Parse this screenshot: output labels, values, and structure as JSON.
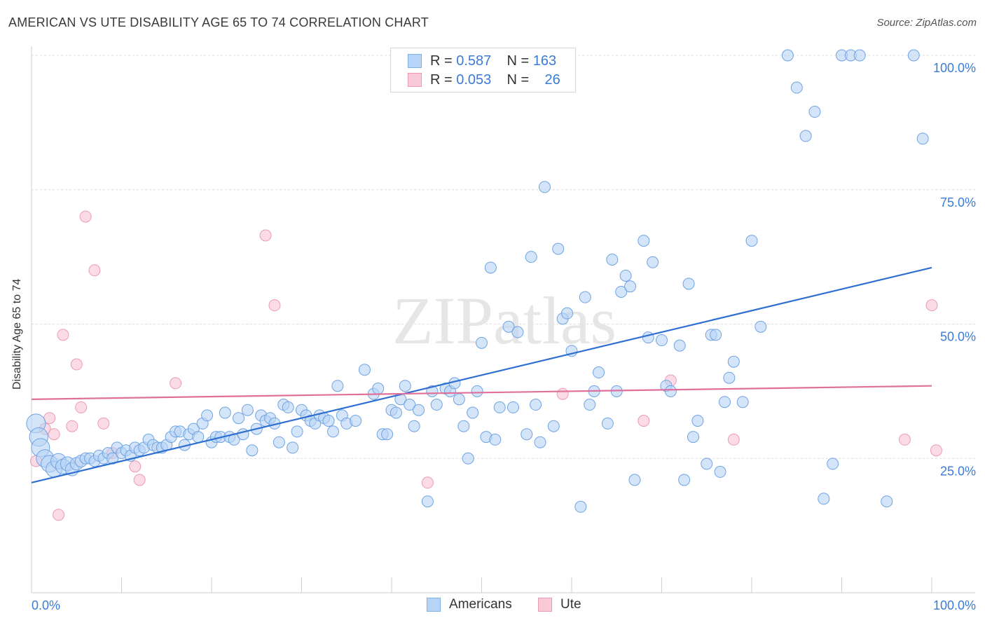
{
  "title": "AMERICAN VS UTE DISABILITY AGE 65 TO 74 CORRELATION CHART",
  "source": "Source: ZipAtlas.com",
  "legend": {
    "rows": [
      {
        "r_label": "R =",
        "r_value": "0.587",
        "n_label": "N =",
        "n_value": "163"
      },
      {
        "r_label": "R =",
        "r_value": "0.053",
        "n_label": "N =",
        "n_value": "26"
      }
    ]
  },
  "bottom_legend": [
    "Americans",
    "Ute"
  ],
  "colors": {
    "blue_fill": "#b7d3f5",
    "blue_stroke": "#6fa3e3",
    "blue_line": "#2f6fd0",
    "pink_fill": "#f9c9d8",
    "pink_stroke": "#ec9ab5",
    "pink_line": "#e0709a",
    "axis_text": "#3b7bd6",
    "grid": "#dcdcdc"
  },
  "chart_data": {
    "type": "scatter",
    "title": "AMERICAN VS UTE DISABILITY AGE 65 TO 74 CORRELATION CHART",
    "xlabel": "",
    "ylabel": "Disability Age 65 to 74",
    "xlim": [
      0,
      100
    ],
    "ylim": [
      0,
      100
    ],
    "x_tick_labels": [
      "0.0%",
      "100.0%"
    ],
    "y_tick_labels": [
      "25.0%",
      "50.0%",
      "75.0%",
      "100.0%"
    ],
    "y_ticks": [
      25,
      50,
      75,
      100
    ],
    "grid": true,
    "watermark": "ZIPatlas",
    "series": [
      {
        "name": "Americans",
        "r": 0.587,
        "n": 163,
        "trend": [
          [
            0,
            20.5
          ],
          [
            100,
            60.5
          ]
        ],
        "points": [
          [
            0.5,
            31.5
          ],
          [
            0.8,
            29
          ],
          [
            1,
            27
          ],
          [
            1.5,
            25
          ],
          [
            2,
            24
          ],
          [
            2.5,
            23
          ],
          [
            3,
            24.5
          ],
          [
            3.5,
            23.5
          ],
          [
            4,
            24
          ],
          [
            4.5,
            23
          ],
          [
            5,
            24
          ],
          [
            5.5,
            24.5
          ],
          [
            6,
            25
          ],
          [
            6.5,
            25
          ],
          [
            7,
            24.5
          ],
          [
            7.5,
            25.5
          ],
          [
            8,
            25
          ],
          [
            8.5,
            26
          ],
          [
            9,
            25
          ],
          [
            9.5,
            27
          ],
          [
            10,
            26
          ],
          [
            10.5,
            26.5
          ],
          [
            11,
            25.5
          ],
          [
            11.5,
            27
          ],
          [
            12,
            26.5
          ],
          [
            12.5,
            27
          ],
          [
            13,
            28.5
          ],
          [
            13.5,
            27.5
          ],
          [
            14,
            27
          ],
          [
            14.5,
            27
          ],
          [
            15,
            27.5
          ],
          [
            15.5,
            29
          ],
          [
            16,
            30
          ],
          [
            16.5,
            30
          ],
          [
            17,
            27.5
          ],
          [
            17.5,
            29.5
          ],
          [
            18,
            30.5
          ],
          [
            18.5,
            29
          ],
          [
            19,
            31.5
          ],
          [
            19.5,
            33
          ],
          [
            20,
            28
          ],
          [
            20.5,
            29
          ],
          [
            21,
            29
          ],
          [
            21.5,
            33.5
          ],
          [
            22,
            29
          ],
          [
            22.5,
            28.5
          ],
          [
            23,
            32.5
          ],
          [
            23.5,
            29.5
          ],
          [
            24,
            34
          ],
          [
            24.5,
            26.5
          ],
          [
            25,
            30.5
          ],
          [
            25.5,
            33
          ],
          [
            26,
            32
          ],
          [
            26.5,
            32.5
          ],
          [
            27,
            31.5
          ],
          [
            27.5,
            28
          ],
          [
            28,
            35
          ],
          [
            28.5,
            34.5
          ],
          [
            29,
            27
          ],
          [
            29.5,
            30
          ],
          [
            30,
            34
          ],
          [
            30.5,
            33
          ],
          [
            31,
            32
          ],
          [
            31.5,
            31.5
          ],
          [
            32,
            33
          ],
          [
            32.5,
            32.5
          ],
          [
            33,
            32
          ],
          [
            33.5,
            30
          ],
          [
            34,
            38.5
          ],
          [
            34.5,
            33
          ],
          [
            35,
            31.5
          ],
          [
            36,
            32
          ],
          [
            37,
            41.5
          ],
          [
            38,
            37
          ],
          [
            38.5,
            38
          ],
          [
            39,
            29.5
          ],
          [
            39.5,
            29.5
          ],
          [
            40,
            34
          ],
          [
            40.5,
            33.5
          ],
          [
            41,
            36
          ],
          [
            41.5,
            38.5
          ],
          [
            42,
            35
          ],
          [
            42.5,
            31
          ],
          [
            43,
            34
          ],
          [
            44,
            17
          ],
          [
            44.5,
            37.5
          ],
          [
            45,
            35
          ],
          [
            46,
            38
          ],
          [
            46.5,
            37.5
          ],
          [
            47,
            39
          ],
          [
            47.5,
            36
          ],
          [
            48,
            31
          ],
          [
            48.5,
            25
          ],
          [
            49,
            33.5
          ],
          [
            49.5,
            37.5
          ],
          [
            50,
            46.5
          ],
          [
            50.5,
            29
          ],
          [
            51,
            60.5
          ],
          [
            51.5,
            28.5
          ],
          [
            52,
            34.5
          ],
          [
            53,
            49.5
          ],
          [
            53.5,
            34.5
          ],
          [
            54,
            48.5
          ],
          [
            55,
            29.5
          ],
          [
            55.5,
            62.5
          ],
          [
            56,
            35
          ],
          [
            56.5,
            28
          ],
          [
            57,
            75.5
          ],
          [
            58,
            31
          ],
          [
            58.5,
            64
          ],
          [
            59,
            51
          ],
          [
            59.5,
            52
          ],
          [
            60,
            45
          ],
          [
            61,
            16
          ],
          [
            61.5,
            55
          ],
          [
            62,
            35
          ],
          [
            62.5,
            37.5
          ],
          [
            63,
            41
          ],
          [
            64,
            31.5
          ],
          [
            64.5,
            62
          ],
          [
            65,
            37.5
          ],
          [
            65.5,
            56
          ],
          [
            66,
            59
          ],
          [
            66.5,
            57
          ],
          [
            67,
            21
          ],
          [
            68,
            65.5
          ],
          [
            68.5,
            47.5
          ],
          [
            69,
            61.5
          ],
          [
            70,
            47
          ],
          [
            70.5,
            38.5
          ],
          [
            71,
            37.5
          ],
          [
            72,
            46
          ],
          [
            72.5,
            21
          ],
          [
            73,
            57.5
          ],
          [
            73.5,
            29
          ],
          [
            74,
            32
          ],
          [
            75,
            24
          ],
          [
            75.5,
            48
          ],
          [
            76,
            48
          ],
          [
            76.5,
            22.5
          ],
          [
            77,
            35.5
          ],
          [
            77.5,
            40
          ],
          [
            78,
            43
          ],
          [
            79,
            35.5
          ],
          [
            80,
            65.5
          ],
          [
            81,
            49.5
          ],
          [
            84,
            100
          ],
          [
            85,
            94
          ],
          [
            86,
            85
          ],
          [
            87,
            89.5
          ],
          [
            88,
            17.5
          ],
          [
            89,
            24
          ],
          [
            90,
            100
          ],
          [
            91,
            100
          ],
          [
            92,
            100
          ],
          [
            95,
            17
          ],
          [
            98,
            100
          ],
          [
            99,
            84.5
          ]
        ]
      },
      {
        "name": "Ute",
        "r": 0.053,
        "n": 26,
        "trend": [
          [
            0,
            36
          ],
          [
            100,
            38.5
          ]
        ],
        "points": [
          [
            0.5,
            24.5
          ],
          [
            1.5,
            30.5
          ],
          [
            2,
            32.5
          ],
          [
            2.5,
            29.5
          ],
          [
            3,
            14.5
          ],
          [
            3.5,
            48
          ],
          [
            4.5,
            31
          ],
          [
            5,
            42.5
          ],
          [
            5.5,
            34.5
          ],
          [
            6,
            70
          ],
          [
            7,
            60
          ],
          [
            8,
            31.5
          ],
          [
            9,
            26
          ],
          [
            11.5,
            23.5
          ],
          [
            12,
            21
          ],
          [
            16,
            39
          ],
          [
            26,
            66.5
          ],
          [
            27,
            53.5
          ],
          [
            44,
            20.5
          ],
          [
            59,
            37
          ],
          [
            68,
            32
          ],
          [
            71,
            39.5
          ],
          [
            78,
            28.5
          ],
          [
            97,
            28.5
          ],
          [
            100,
            53.5
          ],
          [
            100.5,
            26.5
          ]
        ]
      }
    ]
  }
}
